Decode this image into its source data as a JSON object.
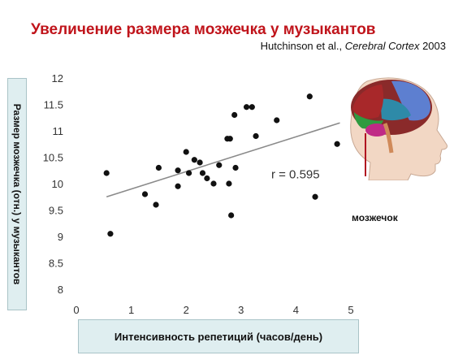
{
  "title": "Увеличение размера мозжечка у музыкантов",
  "citation": {
    "authors": "Hutchinson et al., ",
    "journal": "Cerebral Cortex",
    "year": " 2003"
  },
  "brain_label": "мозжечок",
  "chart_data": {
    "type": "scatter",
    "xlabel": "Интенсивность репетиций (часов/день)",
    "ylabel": "Размер мозжечка (отн.) у музыкантов",
    "xlim": [
      0,
      5
    ],
    "ylim": [
      8,
      12
    ],
    "xticks": [
      "0",
      "1",
      "2",
      "3",
      "4",
      "5"
    ],
    "yticks": [
      "8",
      "8.5",
      "9",
      "9.5",
      "10",
      "10.5",
      "11",
      "11.5",
      "12"
    ],
    "points": [
      [
        0.55,
        10.2
      ],
      [
        0.62,
        9.05
      ],
      [
        1.25,
        9.8
      ],
      [
        1.45,
        9.6
      ],
      [
        1.5,
        10.3
      ],
      [
        1.85,
        10.25
      ],
      [
        1.85,
        9.95
      ],
      [
        2.0,
        10.6
      ],
      [
        2.05,
        10.2
      ],
      [
        2.15,
        10.45
      ],
      [
        2.25,
        10.4
      ],
      [
        2.3,
        10.2
      ],
      [
        2.38,
        10.1
      ],
      [
        2.5,
        10.0
      ],
      [
        2.6,
        10.35
      ],
      [
        2.75,
        10.85
      ],
      [
        2.78,
        10.0
      ],
      [
        2.8,
        10.85
      ],
      [
        2.82,
        9.4
      ],
      [
        2.88,
        11.3
      ],
      [
        2.9,
        10.3
      ],
      [
        3.1,
        11.45
      ],
      [
        3.2,
        11.45
      ],
      [
        3.27,
        10.9
      ],
      [
        3.65,
        11.2
      ],
      [
        4.25,
        11.65
      ],
      [
        4.35,
        9.75
      ],
      [
        4.75,
        10.75
      ]
    ],
    "trendline": [
      [
        0.55,
        9.75
      ],
      [
        4.8,
        11.15
      ]
    ],
    "annotation": "r = 0.595",
    "annotation_pos": [
      3.55,
      10.1
    ]
  }
}
